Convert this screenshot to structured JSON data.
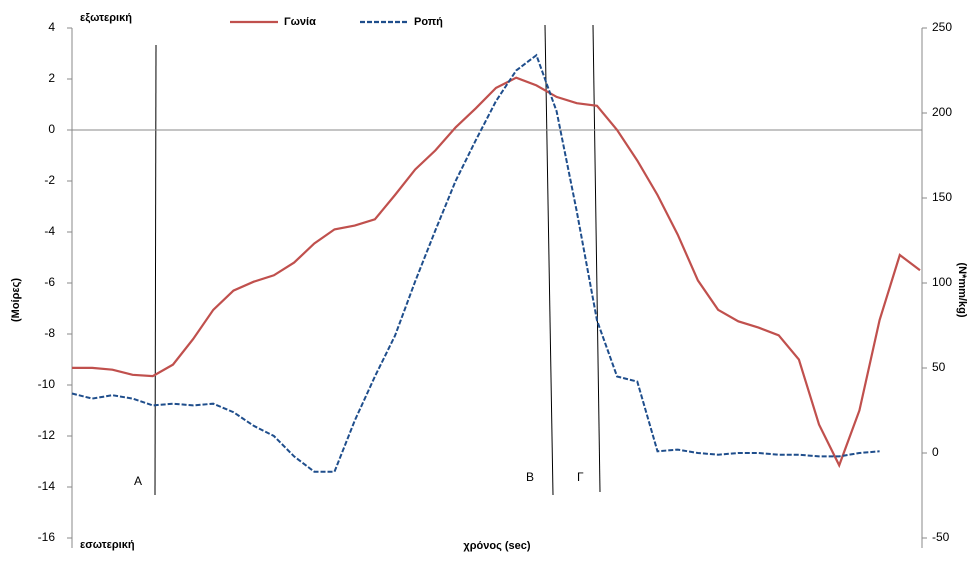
{
  "chart_data": {
    "type": "line",
    "x_label": "χρόνος (sec)",
    "y_label": "(Μοίρες)",
    "y2_label": "(N*mm/kg)",
    "annotations": [
      "εξωτερική",
      "εσωτερική",
      "Α",
      "Β",
      "Γ"
    ],
    "categories": [
      null,
      null,
      null,
      null,
      null,
      null,
      null,
      null,
      null,
      null,
      null,
      null,
      null,
      null,
      null,
      null,
      null,
      null,
      null,
      null,
      null,
      null,
      null,
      null,
      null,
      null,
      null,
      null,
      null,
      null,
      null,
      null,
      null,
      null,
      null,
      null,
      null,
      null,
      null,
      null,
      null,
      null,
      null
    ],
    "series": [
      {
        "name": "Γωνία",
        "color": "#c0504d",
        "dash": false,
        "values": [
          -9.33,
          -9.33,
          -9.4,
          -9.6,
          -9.65,
          -9.2,
          -8.2,
          -7.05,
          -6.3,
          -5.95,
          -5.7,
          -5.2,
          -4.45,
          -3.9,
          -3.75,
          -3.5,
          -2.55,
          -1.55,
          -0.8,
          0.1,
          0.85,
          1.65,
          2.05,
          1.75,
          1.3,
          1.05,
          0.95,
          0,
          -1.2,
          -2.55,
          -4.1,
          -5.9,
          -7.05,
          -7.5,
          -7.75,
          -8.05,
          -9.0,
          -11.55,
          -13.15,
          -11.0,
          -7.45,
          -4.9,
          -5.5
        ]
      },
      {
        "name": "Ροπή",
        "color": "#1f4e8c",
        "dash": true,
        "axis": "y2",
        "values": [
          35,
          32,
          34,
          32,
          28,
          29,
          28,
          29,
          24,
          16,
          10,
          -2,
          -11,
          -11,
          19,
          45,
          69,
          101,
          131,
          160,
          184,
          207,
          225,
          234,
          201,
          142,
          78,
          45,
          42,
          1,
          2,
          0,
          -1,
          0,
          0,
          -1,
          -1,
          -2,
          -2,
          0,
          1,
          null,
          null
        ]
      }
    ],
    "ylim": [
      -16,
      4
    ],
    "yticks": [
      -16,
      -14,
      -12,
      -10,
      -8,
      -6,
      -4,
      -2,
      0,
      2,
      4
    ],
    "y2lim": [
      -50,
      250
    ],
    "y2ticks": [
      -50,
      0,
      50,
      100,
      150,
      200,
      250
    ],
    "zero_line": true,
    "legend": "top"
  }
}
